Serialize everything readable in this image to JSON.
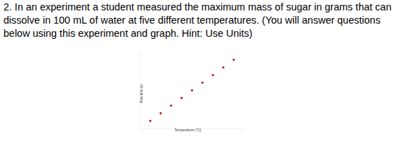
{
  "question": {
    "lines": [
      "2. In an experiment a student measured the maximum mass of sugar in grams that can",
      "dissolve in 100 mL of water at five different temperatures. (You will answer questions",
      "below using this experiment and graph. Hint: Use Units)"
    ]
  },
  "chart_data": {
    "type": "scatter",
    "x_label": "Temperature (°C)",
    "y_label": "Pure time (s)",
    "x": [
      1,
      2,
      3,
      4,
      5,
      6,
      7,
      8,
      9
    ],
    "values": [
      1,
      2,
      3,
      4,
      5,
      6,
      7,
      8,
      9
    ],
    "color": "#c00000",
    "marker": "circle",
    "xlim": [
      0,
      10
    ],
    "ylim": [
      0,
      10
    ],
    "xticks": [],
    "yticks": [],
    "tick_labels": false,
    "grid": false
  }
}
